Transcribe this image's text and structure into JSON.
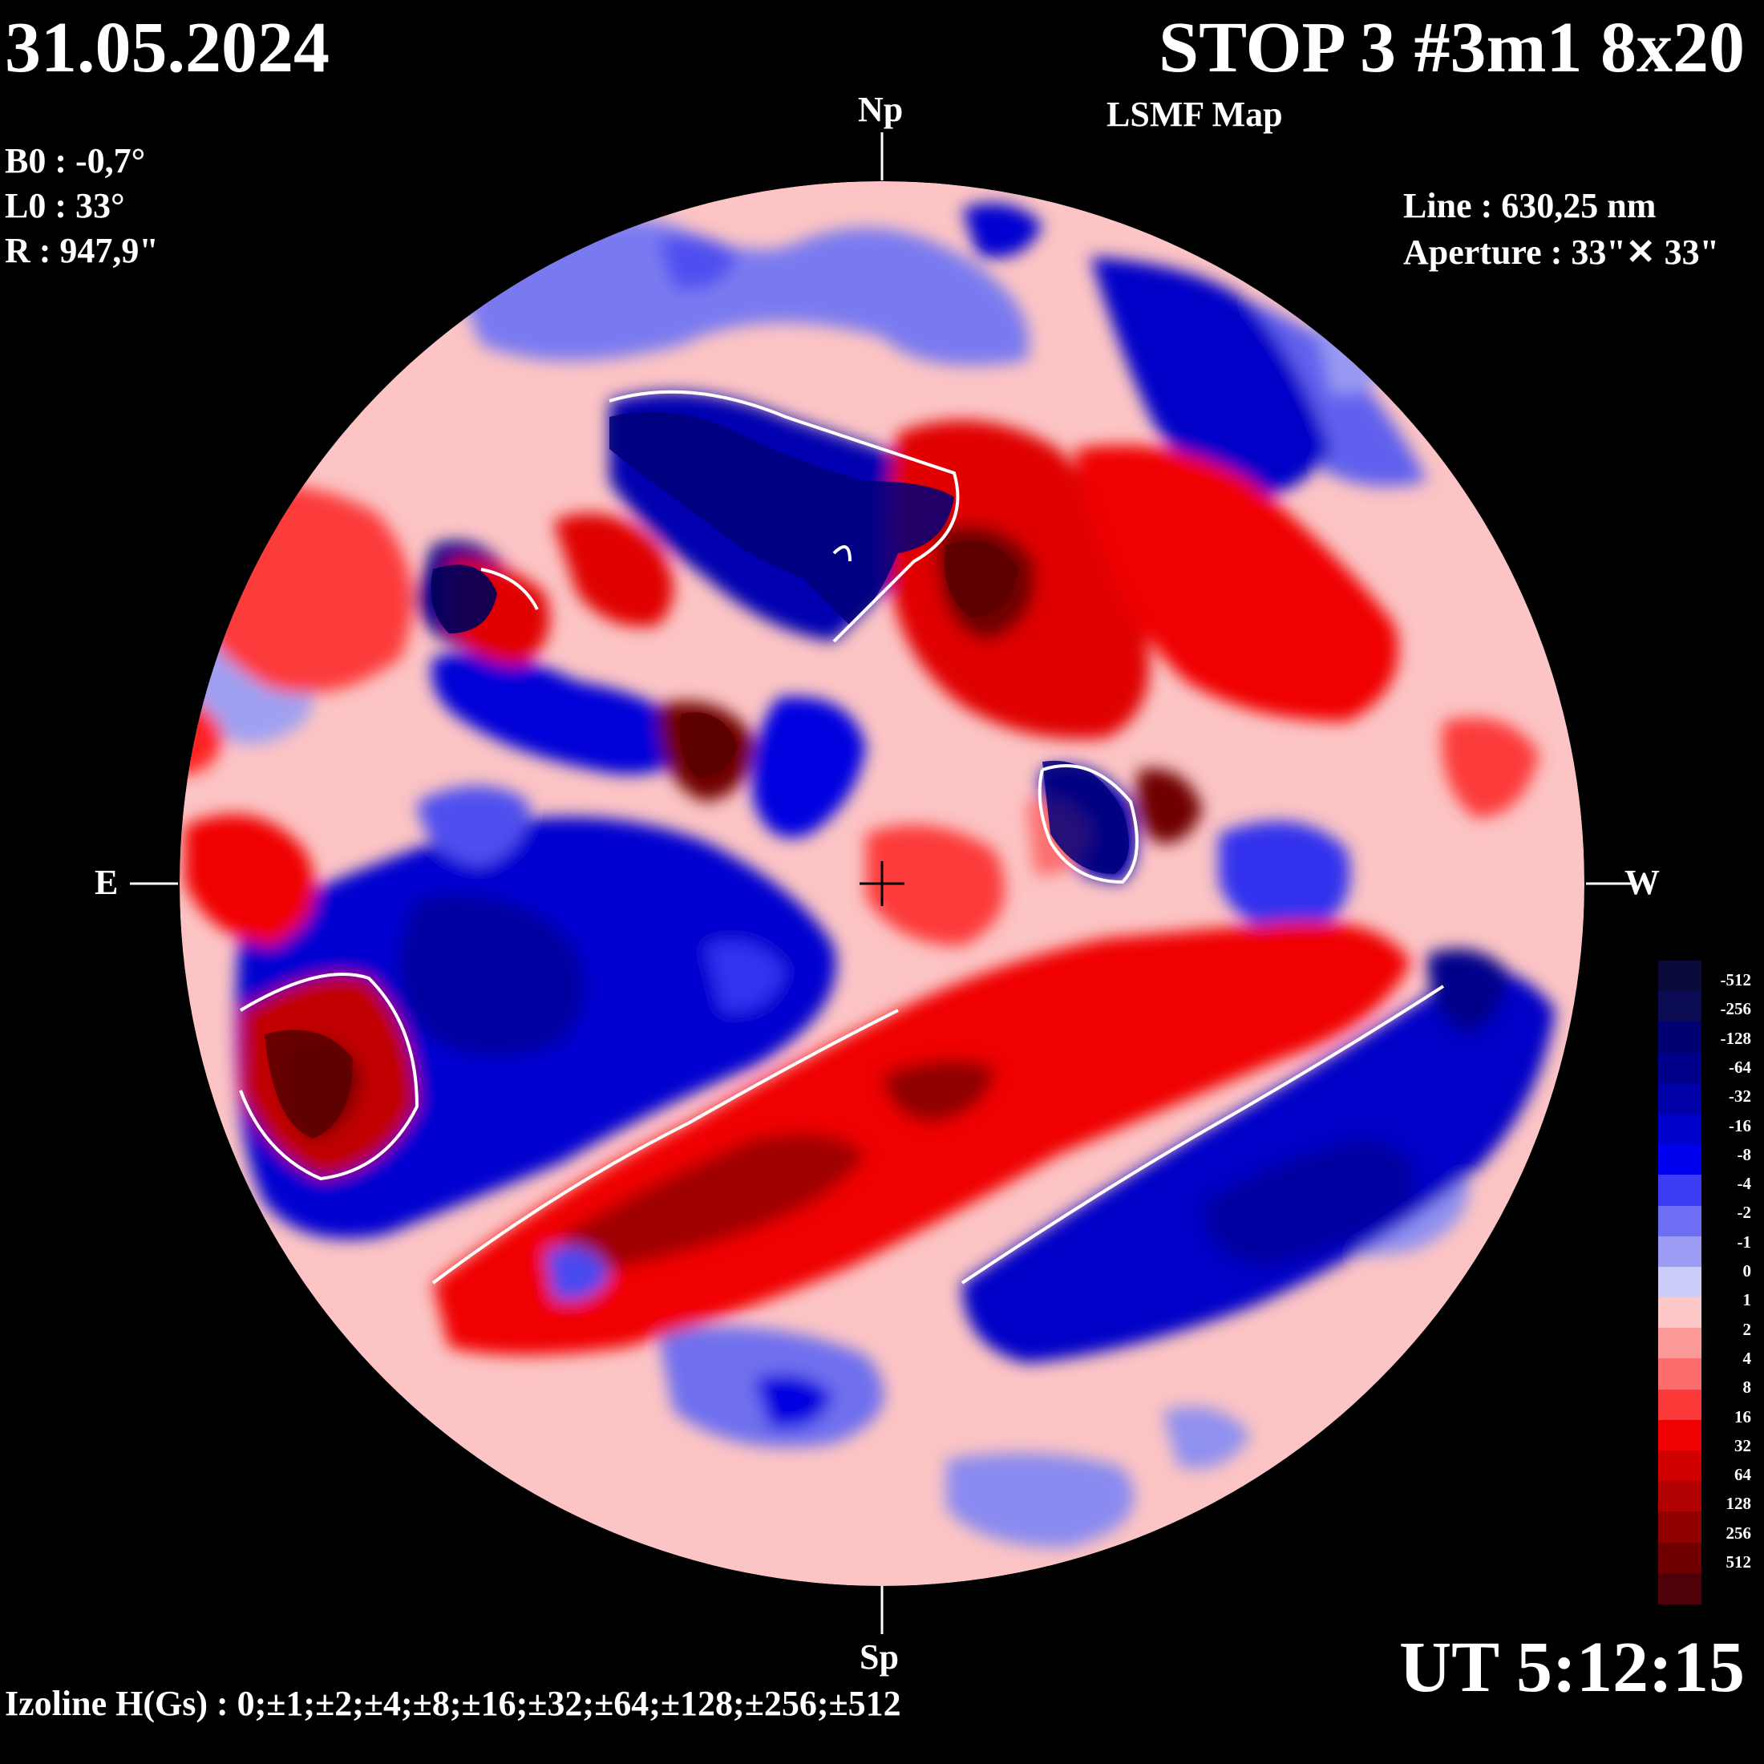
{
  "header": {
    "date": "31.05.2024",
    "title": "STOP 3 #3m1 8x20",
    "subtitle": "LSMF  Map"
  },
  "params": {
    "b0": "B0 : -0,7°",
    "l0": "L0 : 33°",
    "r": "R  : 947,9\""
  },
  "instrument": {
    "line": "Line :  630,25 nm",
    "aperture": "Aperture : 33\"✕ 33\""
  },
  "directions": {
    "north": "Np",
    "south": "Sp",
    "east": "E",
    "west": "W"
  },
  "footer": {
    "ut": "UT 5:12:15",
    "izoline": "Izoline H(Gs) : 0;±1;±2;±4;±8;±16;±32;±64;±128;±256;±512"
  },
  "colors": {
    "background": "#000000",
    "positive_polarity": "#ff0000",
    "negative_polarity": "#0000ff",
    "zero_contour": "#ffffff"
  },
  "colorbar": {
    "labels": [
      "-512",
      "-256",
      "-128",
      "-64",
      "-32",
      "-16",
      "-8",
      "-4",
      "-2",
      "-1",
      "0",
      "1",
      "2",
      "4",
      "8",
      "16",
      "32",
      "64",
      "128",
      "256",
      "512"
    ],
    "colors": [
      "#0a0a3a",
      "#0c0c55",
      "#000070",
      "#00008a",
      "#0000a8",
      "#0000cc",
      "#0000f0",
      "#3c3cf5",
      "#6e6ef5",
      "#9c9cf5",
      "#ccccf8",
      "#fcc8c8",
      "#fc9a9a",
      "#fc6e6e",
      "#fc3a3a",
      "#f00000",
      "#d00000",
      "#b00000",
      "#900000",
      "#700000",
      "#500008"
    ]
  }
}
